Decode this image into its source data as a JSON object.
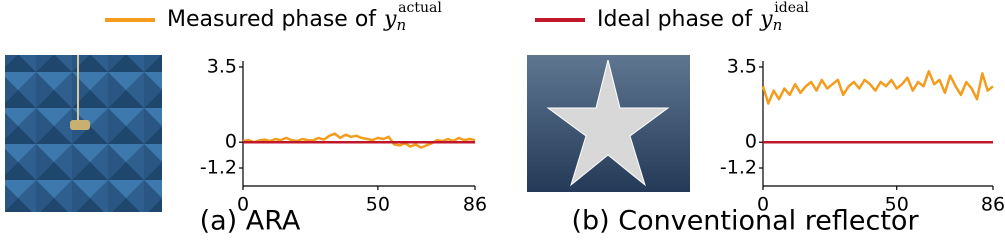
{
  "legend": [
    {
      "name": "Measured phase of",
      "symbol": "y",
      "subscript": "n",
      "superscript": "actual",
      "color": "#f39c1e"
    },
    {
      "name": "Ideal phase of",
      "symbol": "y",
      "subscript": "n",
      "superscript": "ideal",
      "color": "#c0182a"
    }
  ],
  "chart_data": [
    {
      "type": "line",
      "caption": "(a) ARA",
      "x": [
        0,
        2,
        4,
        6,
        8,
        10,
        12,
        14,
        16,
        18,
        20,
        22,
        24,
        26,
        28,
        30,
        32,
        34,
        36,
        38,
        40,
        42,
        44,
        46,
        48,
        50,
        52,
        54,
        56,
        58,
        60,
        62,
        64,
        66,
        68,
        70,
        72,
        74,
        76,
        78,
        80,
        82,
        84,
        86
      ],
      "series": [
        {
          "color": "#f39c1e",
          "values": [
            0.05,
            0.1,
            0.0,
            0.08,
            0.12,
            0.05,
            0.15,
            0.1,
            0.2,
            0.1,
            0.05,
            0.15,
            0.1,
            0.08,
            0.2,
            0.12,
            0.3,
            0.4,
            0.2,
            0.35,
            0.25,
            0.3,
            0.2,
            0.15,
            0.1,
            0.2,
            0.15,
            0.25,
            -0.1,
            -0.15,
            -0.05,
            -0.2,
            -0.1,
            -0.25,
            -0.15,
            -0.05,
            0.1,
            0.05,
            0.15,
            0.05,
            0.2,
            0.1,
            0.15,
            0.1
          ]
        },
        {
          "color": "#c0182a",
          "values": [
            0,
            0,
            0,
            0,
            0,
            0,
            0,
            0,
            0,
            0,
            0,
            0,
            0,
            0,
            0,
            0,
            0,
            0,
            0,
            0,
            0,
            0,
            0,
            0,
            0,
            0,
            0,
            0,
            0,
            0,
            0,
            0,
            0,
            0,
            0,
            0,
            0,
            0,
            0,
            0,
            0,
            0,
            0,
            0
          ]
        }
      ],
      "xlim": [
        0,
        86
      ],
      "xticks": [
        0,
        50,
        86
      ],
      "ylim": [
        -1.2,
        3.5
      ],
      "yticks": [
        -1.2,
        0,
        3.5
      ]
    },
    {
      "type": "line",
      "caption": "(b) Conventional reflector",
      "x": [
        0,
        2,
        4,
        6,
        8,
        10,
        12,
        14,
        16,
        18,
        20,
        22,
        24,
        26,
        28,
        30,
        32,
        34,
        36,
        38,
        40,
        42,
        44,
        46,
        48,
        50,
        52,
        54,
        56,
        58,
        60,
        62,
        64,
        66,
        68,
        70,
        72,
        74,
        76,
        78,
        80,
        82,
        84,
        86
      ],
      "series": [
        {
          "color": "#f39c1e",
          "values": [
            2.6,
            1.8,
            2.4,
            2.0,
            2.5,
            2.2,
            2.7,
            2.3,
            2.6,
            2.8,
            2.4,
            2.9,
            2.5,
            2.7,
            2.9,
            2.2,
            2.6,
            2.8,
            2.5,
            2.9,
            2.7,
            2.4,
            2.8,
            2.6,
            2.9,
            2.5,
            2.7,
            3.0,
            2.4,
            2.8,
            2.6,
            3.3,
            2.7,
            2.9,
            2.3,
            3.1,
            2.6,
            2.2,
            2.8,
            2.5,
            2.0,
            3.2,
            2.4,
            2.6
          ]
        },
        {
          "color": "#c0182a",
          "values": [
            0,
            0,
            0,
            0,
            0,
            0,
            0,
            0,
            0,
            0,
            0,
            0,
            0,
            0,
            0,
            0,
            0,
            0,
            0,
            0,
            0,
            0,
            0,
            0,
            0,
            0,
            0,
            0,
            0,
            0,
            0,
            0,
            0,
            0,
            0,
            0,
            0,
            0,
            0,
            0,
            0,
            0,
            0,
            0
          ]
        }
      ],
      "xlim": [
        0,
        86
      ],
      "xticks": [
        0,
        50,
        86
      ],
      "ylim": [
        -1.2,
        3.5
      ],
      "yticks": [
        -1.2,
        0,
        3.5
      ]
    }
  ]
}
